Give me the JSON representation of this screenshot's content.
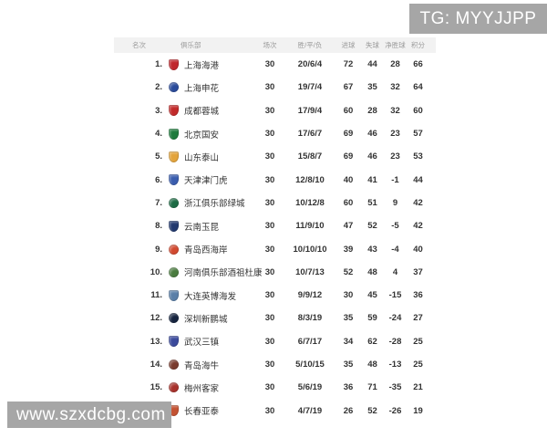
{
  "watermarks": {
    "top_right": "TG: MYYJJPP",
    "bottom_left": "www.szxdcbg.com"
  },
  "colors": {
    "header_bg": "#f2f2f2",
    "header_text": "#9a9a9a",
    "row_text": "#333333",
    "watermark_bg": "#a6a6a6",
    "watermark_text": "#ffffff"
  },
  "table": {
    "headers": {
      "rank": "名次",
      "club": "俱乐部",
      "played": "场次",
      "wdl": "胜/平/负",
      "gf": "进球",
      "ga": "失球",
      "gd": "净胜球",
      "pts": "积分"
    },
    "rows": [
      {
        "rank": "1.",
        "club": "上海海港",
        "played": "30",
        "wdl": "20/6/4",
        "gf": "72",
        "ga": "44",
        "gd": "28",
        "pts": "66",
        "logo_color": "#c0272d",
        "logo_shape": "shield"
      },
      {
        "rank": "2.",
        "club": "上海申花",
        "played": "30",
        "wdl": "19/7/4",
        "gf": "67",
        "ga": "35",
        "gd": "32",
        "pts": "64",
        "logo_color": "#2a4b9b",
        "logo_shape": "circle"
      },
      {
        "rank": "3.",
        "club": "成都蓉城",
        "played": "30",
        "wdl": "17/9/4",
        "gf": "60",
        "ga": "28",
        "gd": "32",
        "pts": "60",
        "logo_color": "#c22a2a",
        "logo_shape": "shield"
      },
      {
        "rank": "4.",
        "club": "北京国安",
        "played": "30",
        "wdl": "17/6/7",
        "gf": "69",
        "ga": "46",
        "gd": "23",
        "pts": "57",
        "logo_color": "#1e7b3c",
        "logo_shape": "shield"
      },
      {
        "rank": "5.",
        "club": "山东泰山",
        "played": "30",
        "wdl": "15/8/7",
        "gf": "69",
        "ga": "46",
        "gd": "23",
        "pts": "53",
        "logo_color": "#e3a43c",
        "logo_shape": "shield"
      },
      {
        "rank": "6.",
        "club": "天津津门虎",
        "played": "30",
        "wdl": "12/8/10",
        "gf": "40",
        "ga": "41",
        "gd": "-1",
        "pts": "44",
        "logo_color": "#3a5dae",
        "logo_shape": "shield"
      },
      {
        "rank": "7.",
        "club": "浙江俱乐部绿城",
        "played": "30",
        "wdl": "10/12/8",
        "gf": "60",
        "ga": "51",
        "gd": "9",
        "pts": "42",
        "logo_color": "#1d6b44",
        "logo_shape": "circle"
      },
      {
        "rank": "8.",
        "club": "云南玉昆",
        "played": "30",
        "wdl": "11/9/10",
        "gf": "47",
        "ga": "52",
        "gd": "-5",
        "pts": "42",
        "logo_color": "#21386e",
        "logo_shape": "shield"
      },
      {
        "rank": "9.",
        "club": "青岛西海岸",
        "played": "30",
        "wdl": "10/10/10",
        "gf": "39",
        "ga": "43",
        "gd": "-4",
        "pts": "40",
        "logo_color": "#d2492f",
        "logo_shape": "circle"
      },
      {
        "rank": "10.",
        "club": "河南俱乐部酒祖杜康",
        "played": "30",
        "wdl": "10/7/13",
        "gf": "52",
        "ga": "48",
        "gd": "4",
        "pts": "37",
        "logo_color": "#4a7c3f",
        "logo_shape": "circle"
      },
      {
        "rank": "11.",
        "club": "大连英博海发",
        "played": "30",
        "wdl": "9/9/12",
        "gf": "30",
        "ga": "45",
        "gd": "-15",
        "pts": "36",
        "logo_color": "#5a7fa8",
        "logo_shape": "shield"
      },
      {
        "rank": "12.",
        "club": "深圳新鹏城",
        "played": "30",
        "wdl": "8/3/19",
        "gf": "35",
        "ga": "59",
        "gd": "-24",
        "pts": "27",
        "logo_color": "#16243f",
        "logo_shape": "circle"
      },
      {
        "rank": "13.",
        "club": "武汉三镇",
        "played": "30",
        "wdl": "6/7/17",
        "gf": "34",
        "ga": "62",
        "gd": "-28",
        "pts": "25",
        "logo_color": "#3b4a9c",
        "logo_shape": "shield"
      },
      {
        "rank": "14.",
        "club": "青岛海牛",
        "played": "30",
        "wdl": "5/10/15",
        "gf": "35",
        "ga": "48",
        "gd": "-13",
        "pts": "25",
        "logo_color": "#7a3b2e",
        "logo_shape": "circle"
      },
      {
        "rank": "15.",
        "club": "梅州客家",
        "played": "30",
        "wdl": "5/6/19",
        "gf": "36",
        "ga": "71",
        "gd": "-35",
        "pts": "21",
        "logo_color": "#a8322c",
        "logo_shape": "circle"
      },
      {
        "rank": "16.",
        "club": "长春亚泰",
        "played": "30",
        "wdl": "4/7/19",
        "gf": "26",
        "ga": "52",
        "gd": "-26",
        "pts": "19",
        "logo_color": "#c35232",
        "logo_shape": "shield"
      }
    ]
  }
}
